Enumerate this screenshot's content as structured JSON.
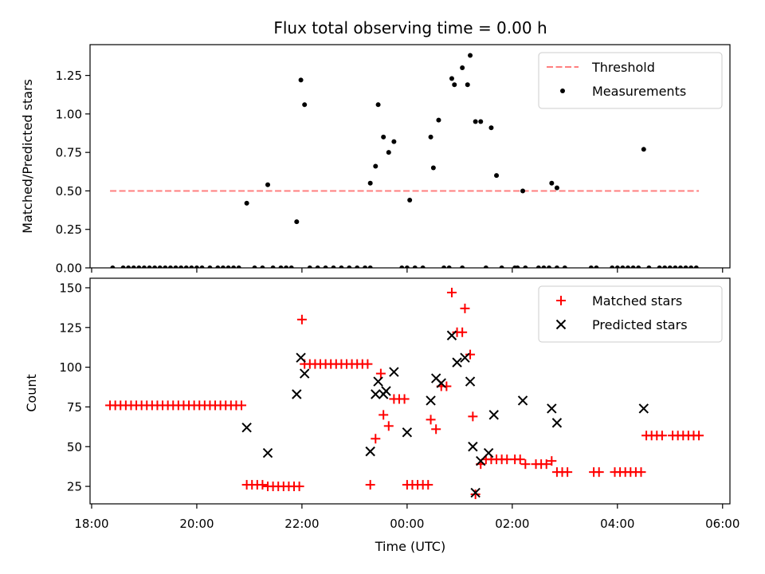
{
  "chart_data": [
    {
      "type": "scatter",
      "title": "Flux total observing time = 0.00 h",
      "xlabel": "",
      "ylabel": "Matched/Predicted stars",
      "xlim_hours": [
        17.97,
        30.14
      ],
      "ylim": [
        0,
        1.45
      ],
      "xticks": [
        18,
        20,
        22,
        24,
        26,
        28,
        30
      ],
      "yticks": [
        0,
        0.25,
        0.5,
        0.75,
        1.0,
        1.25
      ],
      "ytick_labels": [
        "0.00",
        "0.25",
        "0.50",
        "0.75",
        "1.00",
        "1.25"
      ],
      "legend": {
        "placement": "top-right",
        "entries": [
          "Threshold",
          "Measurements"
        ]
      },
      "threshold": {
        "name": "Threshold",
        "value": 0.5,
        "x_range_hours": [
          18.35,
          29.55
        ],
        "color": "#ff7f7f"
      },
      "series": [
        {
          "name": "Measurements",
          "color": "#000000",
          "points": [
            [
              18.4,
              0
            ],
            [
              18.6,
              0
            ],
            [
              18.7,
              0
            ],
            [
              18.8,
              0
            ],
            [
              18.9,
              0
            ],
            [
              19.0,
              0
            ],
            [
              19.1,
              0
            ],
            [
              19.2,
              0
            ],
            [
              19.3,
              0
            ],
            [
              19.4,
              0
            ],
            [
              19.5,
              0
            ],
            [
              19.6,
              0
            ],
            [
              19.7,
              0
            ],
            [
              19.8,
              0
            ],
            [
              19.9,
              0
            ],
            [
              20.0,
              0
            ],
            [
              20.1,
              0
            ],
            [
              20.25,
              0
            ],
            [
              20.4,
              0
            ],
            [
              20.5,
              0
            ],
            [
              20.6,
              0
            ],
            [
              20.7,
              0
            ],
            [
              20.8,
              0
            ],
            [
              20.95,
              0.42
            ],
            [
              21.1,
              0
            ],
            [
              21.25,
              0
            ],
            [
              21.35,
              0.54
            ],
            [
              21.45,
              0
            ],
            [
              21.6,
              0
            ],
            [
              21.7,
              0
            ],
            [
              21.8,
              0
            ],
            [
              21.9,
              0.3
            ],
            [
              21.98,
              1.22
            ],
            [
              22.05,
              1.06
            ],
            [
              22.15,
              0
            ],
            [
              22.3,
              0
            ],
            [
              22.45,
              0
            ],
            [
              22.6,
              0
            ],
            [
              22.75,
              0
            ],
            [
              22.9,
              0
            ],
            [
              23.05,
              0
            ],
            [
              23.2,
              0
            ],
            [
              23.3,
              0
            ],
            [
              23.3,
              0.55
            ],
            [
              23.4,
              0.66
            ],
            [
              23.45,
              1.06
            ],
            [
              23.55,
              0.85
            ],
            [
              23.65,
              0.75
            ],
            [
              23.75,
              0.82
            ],
            [
              23.9,
              0
            ],
            [
              24.0,
              0
            ],
            [
              24.05,
              0.44
            ],
            [
              24.15,
              0
            ],
            [
              24.3,
              0
            ],
            [
              24.45,
              0.85
            ],
            [
              24.5,
              0.65
            ],
            [
              24.6,
              0.96
            ],
            [
              24.7,
              0
            ],
            [
              24.8,
              0
            ],
            [
              24.85,
              1.23
            ],
            [
              24.9,
              1.19
            ],
            [
              25.05,
              0
            ],
            [
              25.05,
              1.3
            ],
            [
              25.15,
              1.19
            ],
            [
              25.2,
              1.38
            ],
            [
              25.3,
              0.95
            ],
            [
              25.4,
              0.95
            ],
            [
              25.5,
              0
            ],
            [
              25.6,
              0.91
            ],
            [
              25.7,
              0.6
            ],
            [
              25.8,
              0
            ],
            [
              26.05,
              0
            ],
            [
              26.1,
              0
            ],
            [
              26.2,
              0.5
            ],
            [
              26.25,
              0
            ],
            [
              26.5,
              0
            ],
            [
              26.6,
              0
            ],
            [
              26.7,
              0
            ],
            [
              26.75,
              0.55
            ],
            [
              26.85,
              0.52
            ],
            [
              26.85,
              0
            ],
            [
              27.0,
              0
            ],
            [
              27.5,
              0
            ],
            [
              27.6,
              0
            ],
            [
              27.9,
              0
            ],
            [
              28.0,
              0
            ],
            [
              28.1,
              0
            ],
            [
              28.2,
              0
            ],
            [
              28.3,
              0
            ],
            [
              28.4,
              0
            ],
            [
              28.5,
              0.77
            ],
            [
              28.6,
              0
            ],
            [
              28.8,
              0
            ],
            [
              28.9,
              0
            ],
            [
              29.0,
              0
            ],
            [
              29.1,
              0
            ],
            [
              29.2,
              0
            ],
            [
              29.3,
              0
            ],
            [
              29.4,
              0
            ],
            [
              29.5,
              0
            ]
          ]
        }
      ]
    },
    {
      "type": "scatter",
      "title": "",
      "xlabel": "Time (UTC)",
      "ylabel": "Count",
      "xlim_hours": [
        17.97,
        30.14
      ],
      "ylim": [
        14,
        156
      ],
      "xticks": [
        18,
        20,
        22,
        24,
        26,
        28,
        30
      ],
      "xtick_labels": [
        "18:00",
        "20:00",
        "22:00",
        "00:00",
        "02:00",
        "04:00",
        "06:00"
      ],
      "yticks": [
        25,
        50,
        75,
        100,
        125,
        150
      ],
      "ytick_labels": [
        "25",
        "50",
        "75",
        "100",
        "125",
        "150"
      ],
      "legend": {
        "placement": "top-right",
        "entries": [
          "Matched stars",
          "Predicted stars"
        ]
      },
      "series": [
        {
          "name": "Matched stars",
          "marker": "+",
          "color": "#ff0000",
          "points": [
            [
              18.35,
              76
            ],
            [
              18.45,
              76
            ],
            [
              18.55,
              76
            ],
            [
              18.65,
              76
            ],
            [
              18.75,
              76
            ],
            [
              18.85,
              76
            ],
            [
              18.95,
              76
            ],
            [
              19.05,
              76
            ],
            [
              19.15,
              76
            ],
            [
              19.25,
              76
            ],
            [
              19.35,
              76
            ],
            [
              19.45,
              76
            ],
            [
              19.55,
              76
            ],
            [
              19.65,
              76
            ],
            [
              19.75,
              76
            ],
            [
              19.85,
              76
            ],
            [
              19.95,
              76
            ],
            [
              20.05,
              76
            ],
            [
              20.15,
              76
            ],
            [
              20.25,
              76
            ],
            [
              20.35,
              76
            ],
            [
              20.45,
              76
            ],
            [
              20.55,
              76
            ],
            [
              20.65,
              76
            ],
            [
              20.75,
              76
            ],
            [
              20.85,
              76
            ],
            [
              20.95,
              26
            ],
            [
              21.05,
              26
            ],
            [
              21.15,
              26
            ],
            [
              21.25,
              26
            ],
            [
              21.35,
              25
            ],
            [
              21.45,
              25
            ],
            [
              21.55,
              25
            ],
            [
              21.65,
              25
            ],
            [
              21.75,
              25
            ],
            [
              21.85,
              25
            ],
            [
              21.95,
              25
            ],
            [
              22.0,
              130
            ],
            [
              22.05,
              102
            ],
            [
              22.15,
              102
            ],
            [
              22.25,
              102
            ],
            [
              22.35,
              102
            ],
            [
              22.45,
              102
            ],
            [
              22.55,
              102
            ],
            [
              22.65,
              102
            ],
            [
              22.75,
              102
            ],
            [
              22.85,
              102
            ],
            [
              22.95,
              102
            ],
            [
              23.05,
              102
            ],
            [
              23.15,
              102
            ],
            [
              23.25,
              102
            ],
            [
              23.3,
              26
            ],
            [
              23.4,
              55
            ],
            [
              23.5,
              96
            ],
            [
              23.55,
              70
            ],
            [
              23.65,
              63
            ],
            [
              23.75,
              80
            ],
            [
              23.85,
              80
            ],
            [
              23.95,
              80
            ],
            [
              24.0,
              26
            ],
            [
              24.1,
              26
            ],
            [
              24.2,
              26
            ],
            [
              24.3,
              26
            ],
            [
              24.4,
              26
            ],
            [
              24.45,
              67
            ],
            [
              24.55,
              61
            ],
            [
              24.65,
              88
            ],
            [
              24.75,
              88
            ],
            [
              24.85,
              147
            ],
            [
              24.95,
              122
            ],
            [
              25.05,
              122
            ],
            [
              25.1,
              137
            ],
            [
              25.2,
              108
            ],
            [
              25.25,
              69
            ],
            [
              25.3,
              20
            ],
            [
              25.4,
              39
            ],
            [
              25.5,
              42
            ],
            [
              25.6,
              42
            ],
            [
              25.7,
              42
            ],
            [
              25.8,
              42
            ],
            [
              25.9,
              42
            ],
            [
              26.05,
              42
            ],
            [
              26.15,
              42
            ],
            [
              26.25,
              39
            ],
            [
              26.45,
              39
            ],
            [
              26.55,
              39
            ],
            [
              26.65,
              39
            ],
            [
              26.75,
              41
            ],
            [
              26.85,
              34
            ],
            [
              26.95,
              34
            ],
            [
              27.05,
              34
            ],
            [
              27.55,
              34
            ],
            [
              27.65,
              34
            ],
            [
              27.95,
              34
            ],
            [
              28.05,
              34
            ],
            [
              28.15,
              34
            ],
            [
              28.25,
              34
            ],
            [
              28.35,
              34
            ],
            [
              28.45,
              34
            ],
            [
              28.55,
              57
            ],
            [
              28.65,
              57
            ],
            [
              28.75,
              57
            ],
            [
              28.85,
              57
            ],
            [
              29.05,
              57
            ],
            [
              29.15,
              57
            ],
            [
              29.25,
              57
            ],
            [
              29.35,
              57
            ],
            [
              29.45,
              57
            ],
            [
              29.55,
              57
            ]
          ]
        },
        {
          "name": "Predicted stars",
          "marker": "x",
          "color": "#000000",
          "points": [
            [
              20.95,
              62
            ],
            [
              21.35,
              46
            ],
            [
              21.9,
              83
            ],
            [
              21.98,
              106
            ],
            [
              22.05,
              96
            ],
            [
              23.3,
              47
            ],
            [
              23.4,
              83
            ],
            [
              23.45,
              91
            ],
            [
              23.55,
              83
            ],
            [
              23.6,
              85
            ],
            [
              23.75,
              97
            ],
            [
              24.0,
              59
            ],
            [
              24.45,
              79
            ],
            [
              24.55,
              93
            ],
            [
              24.65,
              90
            ],
            [
              24.85,
              120
            ],
            [
              24.95,
              103
            ],
            [
              25.1,
              106
            ],
            [
              25.2,
              91
            ],
            [
              25.25,
              50
            ],
            [
              25.3,
              21
            ],
            [
              25.4,
              41
            ],
            [
              25.55,
              46
            ],
            [
              25.65,
              70
            ],
            [
              26.2,
              79
            ],
            [
              26.75,
              74
            ],
            [
              26.85,
              65
            ],
            [
              28.5,
              74
            ]
          ]
        }
      ]
    }
  ]
}
